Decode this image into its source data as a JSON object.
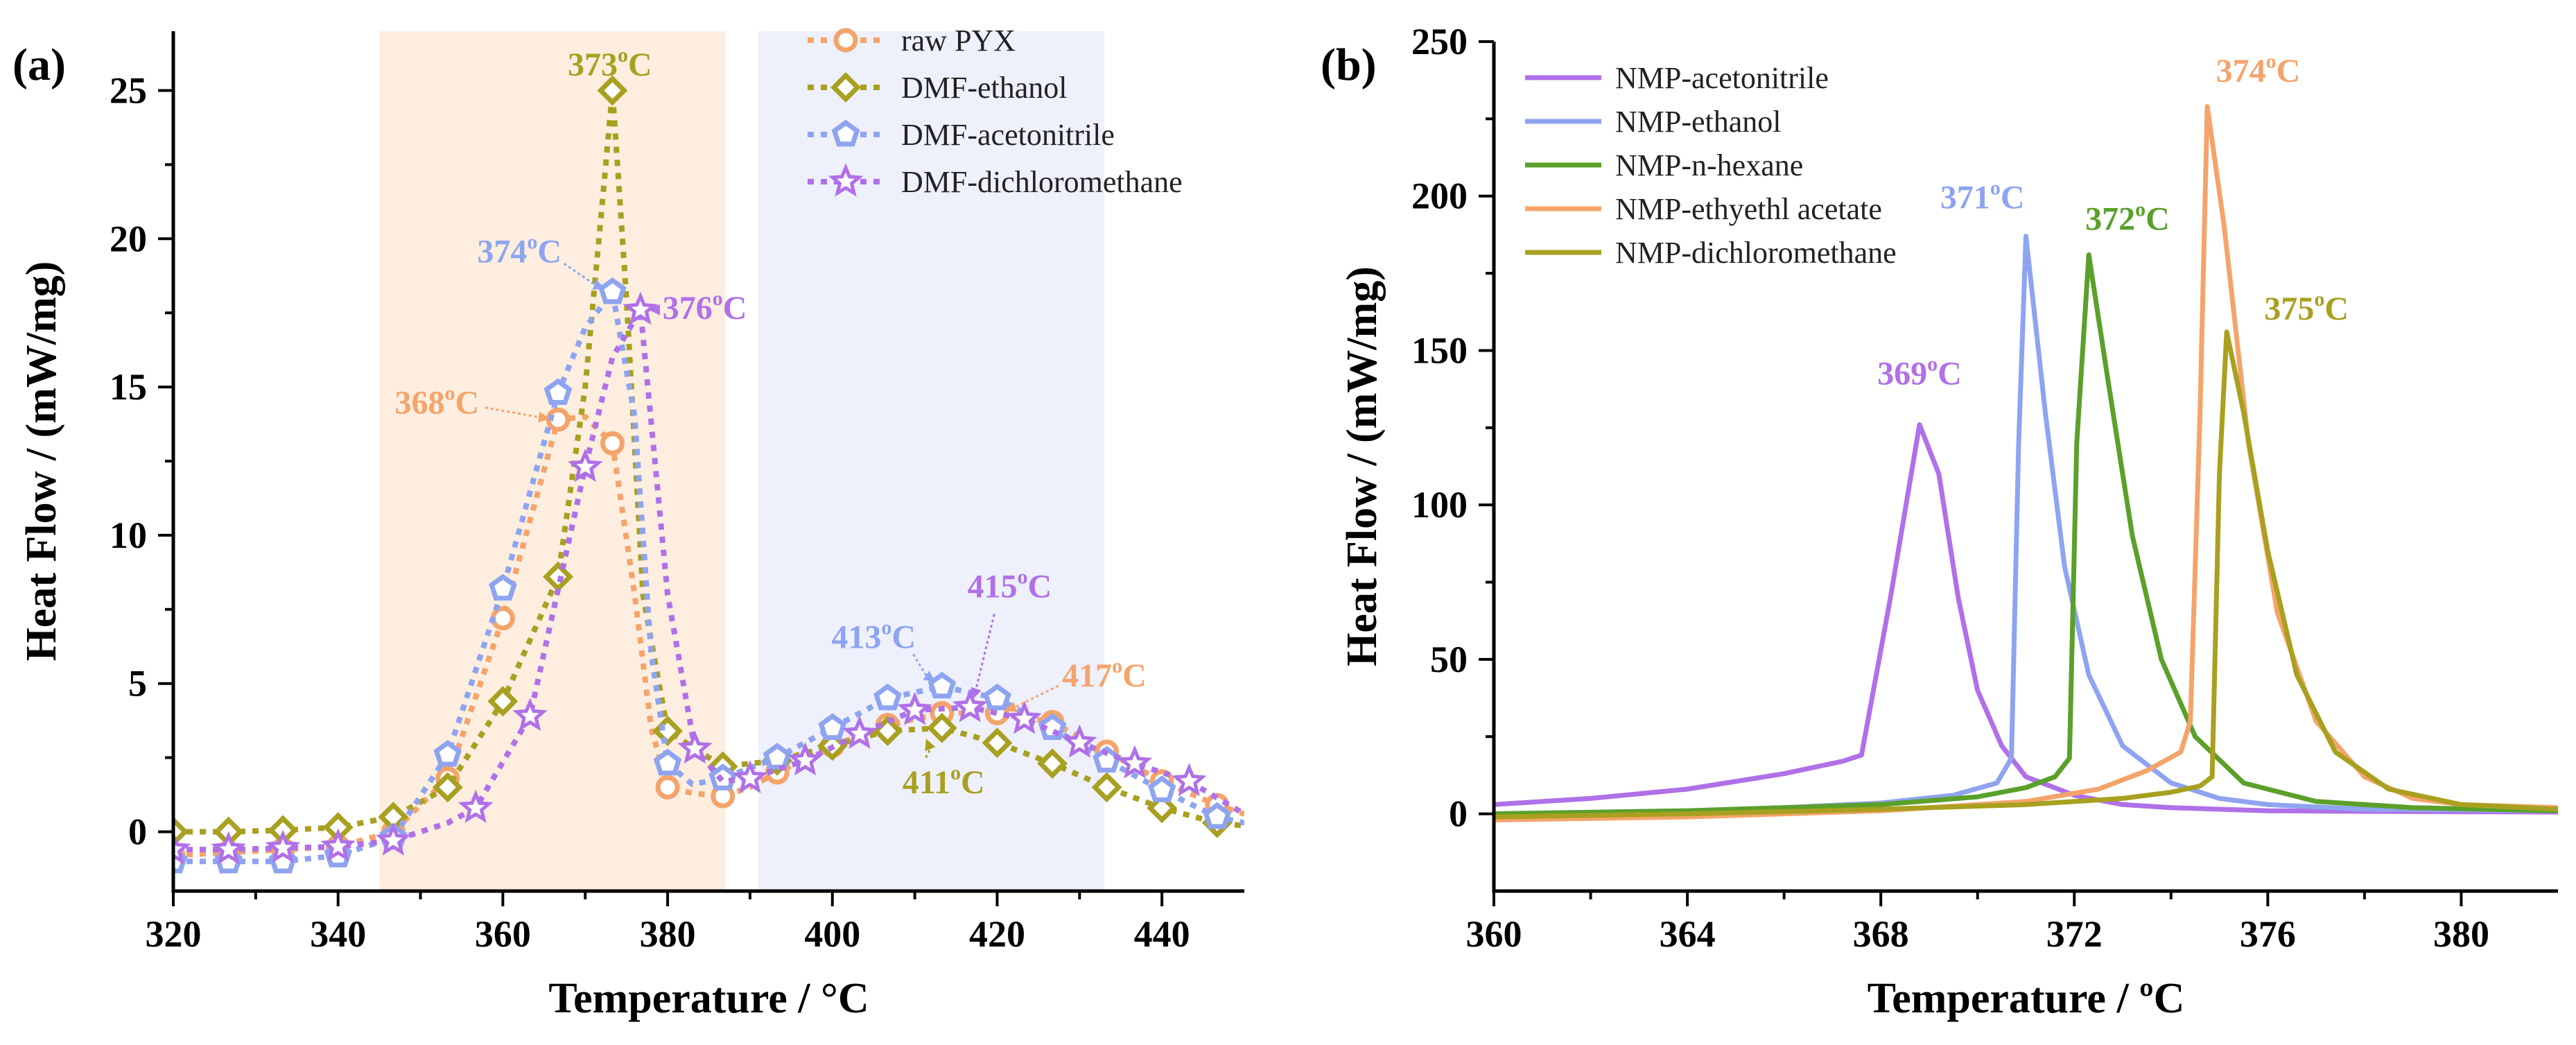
{
  "chart_data": [
    {
      "panel": "(a)",
      "type": "line",
      "xlabel": "Temperature / °C",
      "ylabel": "Heat Flow / (mW/mg)",
      "xlim": [
        320,
        450
      ],
      "ylim": [
        -2,
        27
      ],
      "xticks": [
        320,
        340,
        360,
        380,
        400,
        420,
        440
      ],
      "yticks": [
        0,
        5,
        10,
        15,
        20,
        25
      ],
      "shaded_regions": [
        {
          "x0": 345,
          "x1": 387,
          "color": "#fdeee0"
        },
        {
          "x0": 391,
          "x1": 433,
          "color": "#eef0fc"
        }
      ],
      "legend_position": "top-right",
      "series": [
        {
          "name": "raw PYX",
          "color": "#f4a46a",
          "marker": "circle",
          "x": [
            320,
            326.7,
            333.3,
            340,
            346.7,
            353.3,
            360,
            366.7,
            370,
            373.3,
            376,
            378,
            380,
            383,
            386.7,
            390,
            393.3,
            400,
            406.7,
            413.3,
            420,
            426.7,
            433.3,
            440,
            446.7,
            450
          ],
          "y": [
            -0.8,
            -0.7,
            -0.6,
            -0.5,
            0.0,
            1.8,
            7.2,
            13.9,
            14.0,
            13.1,
            8.0,
            3.5,
            1.5,
            1.3,
            1.2,
            1.5,
            2.0,
            2.9,
            3.6,
            4.0,
            4.0,
            3.7,
            2.7,
            1.7,
            0.9,
            0.6
          ],
          "marked_index": [
            0,
            1,
            2,
            3,
            4,
            5,
            6,
            7,
            9,
            12,
            14,
            16,
            17,
            18,
            19,
            20,
            21,
            22,
            23,
            24
          ]
        },
        {
          "name": "DMF-ethanol",
          "color": "#a8a020",
          "marker": "diamond",
          "x": [
            320,
            326.7,
            333.3,
            340,
            346.7,
            353.3,
            360,
            366.7,
            370,
            372,
            373.3,
            375,
            377,
            380,
            386.7,
            393.3,
            400,
            406.7,
            413.3,
            420,
            426.7,
            433.3,
            440,
            446.7,
            450
          ],
          "y": [
            0.0,
            0.0,
            0.05,
            0.15,
            0.5,
            1.5,
            4.4,
            8.6,
            15.0,
            21.0,
            25.0,
            18.0,
            8.0,
            3.4,
            2.2,
            2.4,
            2.9,
            3.4,
            3.5,
            3.0,
            2.3,
            1.5,
            0.8,
            0.3,
            0.2
          ],
          "marked_index": [
            0,
            1,
            2,
            3,
            4,
            5,
            6,
            7,
            10,
            13,
            14,
            15,
            16,
            17,
            18,
            19,
            20,
            21,
            22,
            23
          ]
        },
        {
          "name": "DMF-acetonitrile",
          "color": "#8ea4f0",
          "marker": "pentagon",
          "x": [
            320,
            326.7,
            333.3,
            340,
            346.7,
            353.3,
            360,
            366.7,
            370,
            373.3,
            376,
            378,
            380,
            383,
            386.7,
            393.3,
            400,
            406.7,
            413.3,
            420,
            426.7,
            433.3,
            440,
            446.7,
            450
          ],
          "y": [
            -1.0,
            -1.0,
            -1.0,
            -0.8,
            -0.2,
            2.6,
            8.2,
            14.8,
            17.0,
            18.2,
            14.0,
            6.0,
            2.3,
            1.6,
            1.8,
            2.5,
            3.5,
            4.5,
            4.9,
            4.5,
            3.5,
            2.4,
            1.4,
            0.5,
            0.3
          ],
          "marked_index": [
            0,
            1,
            2,
            3,
            4,
            5,
            6,
            7,
            9,
            12,
            14,
            15,
            16,
            17,
            18,
            19,
            20,
            21,
            22,
            23
          ]
        },
        {
          "name": "DMF-dichloromethane",
          "color": "#b070e8",
          "marker": "star",
          "x": [
            320,
            326.7,
            333.3,
            340,
            346.7,
            353.3,
            356.7,
            363.3,
            370,
            373.3,
            376.7,
            380,
            383.3,
            386.7,
            390,
            396.7,
            403.3,
            410,
            416.7,
            423.3,
            430,
            436.7,
            443.3,
            450
          ],
          "y": [
            -0.6,
            -0.6,
            -0.55,
            -0.5,
            -0.3,
            0.3,
            0.8,
            3.9,
            12.3,
            16.0,
            17.6,
            8.0,
            2.8,
            1.7,
            1.8,
            2.4,
            3.3,
            4.1,
            4.2,
            3.8,
            3.0,
            2.3,
            1.7,
            0.6
          ],
          "marked_index": [
            0,
            1,
            2,
            3,
            4,
            6,
            7,
            8,
            10,
            12,
            14,
            15,
            16,
            17,
            18,
            19,
            20,
            21,
            22
          ]
        }
      ],
      "annotations": [
        {
          "text": "373",
          "unit": "C",
          "x": 373,
          "y": 25.5,
          "color": "#a8a020",
          "peak_x": 373.3,
          "peak_y": 25.0
        },
        {
          "text": "374",
          "unit": "C",
          "x": 362,
          "y": 19.2,
          "color": "#8ea4f0",
          "peak_x": 373.3,
          "peak_y": 18.2
        },
        {
          "text": "376",
          "unit": "C",
          "x": 384.5,
          "y": 17.3,
          "color": "#b070e8",
          "peak_x": 376.7,
          "peak_y": 17.6
        },
        {
          "text": "368",
          "unit": "C",
          "x": 352,
          "y": 14.1,
          "color": "#f4a46a",
          "peak_x": 366.7,
          "peak_y": 13.9
        },
        {
          "text": "415",
          "unit": "C",
          "x": 421.5,
          "y": 7.9,
          "color": "#b070e8",
          "peak_x": 416.7,
          "peak_y": 4.2
        },
        {
          "text": "413",
          "unit": "C",
          "x": 405,
          "y": 6.2,
          "color": "#8ea4f0",
          "peak_x": 413.3,
          "peak_y": 4.9
        },
        {
          "text": "417",
          "unit": "C",
          "x": 433,
          "y": 4.9,
          "color": "#f4a46a",
          "peak_x": 420,
          "peak_y": 4.0
        },
        {
          "text": "411",
          "unit": "C",
          "x": 413.5,
          "y": 1.3,
          "color": "#a8a020",
          "peak_x": 411,
          "peak_y": 3.4
        }
      ]
    },
    {
      "panel": "(b)",
      "type": "line",
      "xlabel": "Temperature / ºC",
      "ylabel": "Heat Flow / (mW/mg)",
      "xlim": [
        360,
        382
      ],
      "ylim": [
        -25,
        250
      ],
      "xticks": [
        360,
        364,
        368,
        372,
        376,
        380
      ],
      "yticks": [
        0,
        50,
        100,
        150,
        200,
        250
      ],
      "legend_position": "top-left",
      "series": [
        {
          "name": "NMP-acetonitrile",
          "color": "#b070e8",
          "x": [
            360,
            362,
            364,
            366,
            367.2,
            367.6,
            368.2,
            368.8,
            369.2,
            369.6,
            370,
            370.5,
            371,
            372,
            373,
            374,
            376,
            378,
            382
          ],
          "y": [
            3,
            5,
            8,
            13,
            17,
            19,
            70,
            126,
            110,
            70,
            40,
            22,
            12,
            6,
            3,
            2,
            1,
            0.8,
            0.6
          ]
        },
        {
          "name": "NMP-ethanol",
          "color": "#8ea4f0",
          "x": [
            360,
            362,
            364,
            366,
            368,
            369.5,
            370.4,
            370.7,
            370.85,
            371,
            371.4,
            371.8,
            372.3,
            373,
            374,
            375,
            376,
            378,
            382
          ],
          "y": [
            0,
            0.5,
            1,
            2,
            3.5,
            6,
            10,
            18,
            120,
            187,
            130,
            80,
            45,
            22,
            10,
            5,
            3,
            1.5,
            1
          ]
        },
        {
          "name": "NMP-n-hexane",
          "color": "#5aa02a",
          "x": [
            360,
            364,
            366,
            368,
            370,
            371,
            371.6,
            371.9,
            372.05,
            372.3,
            372.7,
            373.2,
            373.8,
            374.5,
            375.5,
            377,
            379,
            382
          ],
          "y": [
            0,
            1,
            2,
            3,
            5.5,
            8.5,
            12,
            18,
            120,
            181,
            140,
            90,
            50,
            25,
            10,
            4,
            2,
            1
          ]
        },
        {
          "name": "NMP-ethyethl acetate",
          "color": "#f4a46a",
          "x": [
            360,
            364,
            368,
            371,
            372.5,
            373.5,
            374.2,
            374.4,
            374.6,
            374.75,
            375.1,
            375.6,
            376.2,
            377,
            378,
            379,
            380,
            382
          ],
          "y": [
            -2,
            -1,
            1,
            4,
            8,
            14,
            20,
            30,
            130,
            229,
            190,
            120,
            65,
            30,
            12,
            5,
            3,
            2
          ]
        },
        {
          "name": "NMP-dichloromethane",
          "color": "#a8a020",
          "x": [
            360,
            364,
            368,
            371,
            373,
            374,
            374.6,
            374.85,
            375.0,
            375.15,
            375.5,
            376,
            376.6,
            377.4,
            378.5,
            380,
            382
          ],
          "y": [
            -1,
            0,
            1.5,
            3,
            5,
            7,
            9,
            12,
            110,
            156,
            130,
            85,
            45,
            20,
            8,
            3,
            1.5
          ]
        }
      ],
      "annotations": [
        {
          "text": "369",
          "unit": "C",
          "x": 368.8,
          "y": 139,
          "color": "#b070e8"
        },
        {
          "text": "371",
          "unit": "C",
          "x": 370.1,
          "y": 196,
          "color": "#8ea4f0"
        },
        {
          "text": "372",
          "unit": "C",
          "x": 373.1,
          "y": 189,
          "color": "#5aa02a"
        },
        {
          "text": "374",
          "unit": "C",
          "x": 375.8,
          "y": 237,
          "color": "#f4a46a"
        },
        {
          "text": "375",
          "unit": "C",
          "x": 376.8,
          "y": 160,
          "color": "#a8a020"
        }
      ]
    }
  ]
}
